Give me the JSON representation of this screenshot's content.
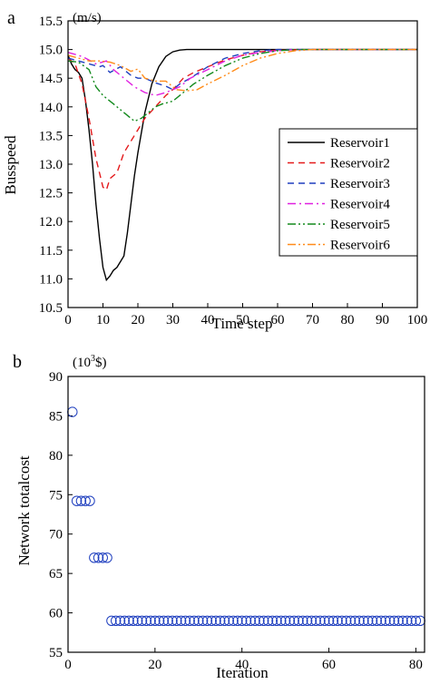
{
  "chart_data": [
    {
      "type": "line",
      "panel_label": "a",
      "unit": "(m/s)",
      "xlabel": "Time step",
      "ylabel": "Busspeed",
      "xlim": [
        0,
        100
      ],
      "ylim": [
        10.5,
        15.5
      ],
      "xticks": [
        0,
        10,
        20,
        30,
        40,
        50,
        60,
        70,
        80,
        90,
        100
      ],
      "yticks": [
        10.5,
        11.0,
        11.5,
        12.0,
        12.5,
        13.0,
        13.5,
        14.0,
        14.5,
        15.0,
        15.5
      ],
      "grid": false,
      "legend_position": "right",
      "series": [
        {
          "name": "Reservoir1",
          "color": "#000000",
          "dash": "solid",
          "x": [
            0,
            1,
            2,
            3,
            4,
            5,
            6,
            7,
            8,
            9,
            10,
            11,
            12,
            13,
            14,
            15,
            16,
            17,
            18,
            19,
            20,
            22,
            24,
            26,
            28,
            30,
            32,
            34,
            36,
            40,
            50,
            60,
            70,
            80,
            90,
            100
          ],
          "y": [
            14.9,
            14.75,
            14.65,
            14.6,
            14.5,
            14.1,
            13.6,
            13.0,
            12.3,
            11.7,
            11.2,
            10.98,
            11.05,
            11.15,
            11.2,
            11.3,
            11.4,
            11.8,
            12.3,
            12.8,
            13.2,
            13.9,
            14.4,
            14.7,
            14.88,
            14.96,
            14.99,
            15.0,
            15.0,
            15.0,
            15.0,
            15.0,
            15.0,
            15.0,
            15.0,
            15.0
          ]
        },
        {
          "name": "Reservoir2",
          "color": "#e41a1c",
          "dash": "7,5",
          "x": [
            0,
            2,
            4,
            6,
            8,
            10,
            11,
            12,
            14,
            16,
            18,
            20,
            22,
            25,
            28,
            30,
            33,
            36,
            40,
            45,
            50,
            55,
            60,
            70,
            80,
            90,
            100
          ],
          "y": [
            14.85,
            14.75,
            14.4,
            13.8,
            13.1,
            12.6,
            12.55,
            12.75,
            12.85,
            13.2,
            13.4,
            13.6,
            13.8,
            14.0,
            14.2,
            14.3,
            14.5,
            14.6,
            14.7,
            14.82,
            14.9,
            14.96,
            14.99,
            15.0,
            15.0,
            15.0,
            15.0
          ]
        },
        {
          "name": "Reservoir3",
          "color": "#1f3fbf",
          "dash": "7,5",
          "x": [
            0,
            3,
            6,
            9,
            10,
            12,
            15,
            18,
            20,
            22,
            25,
            27,
            28,
            30,
            32,
            35,
            40,
            45,
            50,
            55,
            60,
            70,
            80,
            90,
            100
          ],
          "y": [
            14.85,
            14.8,
            14.75,
            14.7,
            14.72,
            14.6,
            14.7,
            14.55,
            14.5,
            14.5,
            14.42,
            14.38,
            14.36,
            14.3,
            14.4,
            14.5,
            14.7,
            14.85,
            14.93,
            14.98,
            15.0,
            15.0,
            15.0,
            15.0,
            15.0
          ]
        },
        {
          "name": "Reservoir4",
          "color": "#e020e0",
          "dash": "9,4,2,4",
          "x": [
            0,
            3,
            5,
            8,
            11,
            13,
            16,
            19,
            22,
            25,
            28,
            30,
            32,
            35,
            40,
            45,
            50,
            55,
            60,
            65,
            70,
            80,
            90,
            100
          ],
          "y": [
            14.95,
            14.9,
            14.85,
            14.75,
            14.8,
            14.65,
            14.5,
            14.35,
            14.25,
            14.2,
            14.25,
            14.3,
            14.35,
            14.5,
            14.65,
            14.8,
            14.9,
            14.95,
            14.98,
            15.0,
            15.0,
            15.0,
            15.0,
            15.0
          ]
        },
        {
          "name": "Reservoir5",
          "color": "#138a1d",
          "dash": "9,3,2,3,2,3",
          "x": [
            0,
            3,
            6,
            8,
            10,
            13,
            16,
            19,
            21,
            23,
            25,
            27,
            30,
            33,
            36,
            40,
            45,
            50,
            55,
            60,
            65,
            70,
            80,
            90,
            100
          ],
          "y": [
            14.8,
            14.78,
            14.65,
            14.35,
            14.2,
            14.05,
            13.9,
            13.75,
            13.8,
            13.9,
            14.0,
            14.05,
            14.1,
            14.25,
            14.4,
            14.55,
            14.72,
            14.85,
            14.93,
            14.98,
            15.0,
            15.0,
            15.0,
            15.0,
            15.0
          ]
        },
        {
          "name": "Reservoir6",
          "color": "#ff8c1a",
          "dash": "9,3,2,3,2,3",
          "x": [
            0,
            3,
            6,
            9,
            12,
            15,
            18,
            20,
            22,
            25,
            28,
            31,
            34,
            37,
            40,
            45,
            50,
            55,
            60,
            65,
            70,
            80,
            90,
            100
          ],
          "y": [
            14.9,
            14.85,
            14.8,
            14.8,
            14.78,
            14.72,
            14.62,
            14.66,
            14.5,
            14.45,
            14.45,
            14.3,
            14.28,
            14.3,
            14.4,
            14.55,
            14.72,
            14.85,
            14.93,
            14.98,
            15.0,
            15.0,
            15.0,
            15.0
          ]
        }
      ]
    },
    {
      "type": "scatter",
      "panel_label": "b",
      "unit_prefix": "(10",
      "unit_exp": "3",
      "unit_suffix": "$)",
      "xlabel": "Iteration",
      "ylabel": "Network totalcost",
      "xlim": [
        0,
        82
      ],
      "ylim": [
        55,
        90
      ],
      "xticks": [
        0,
        20,
        40,
        60,
        80
      ],
      "yticks": [
        55,
        60,
        65,
        70,
        75,
        80,
        85,
        90
      ],
      "grid": false,
      "marker": "open-circle",
      "color": "#1f3fbf",
      "x": [
        1,
        2,
        3,
        4,
        5,
        6,
        7,
        8,
        9,
        10,
        11,
        12,
        13,
        14,
        15,
        16,
        17,
        18,
        19,
        20,
        21,
        22,
        23,
        24,
        25,
        26,
        27,
        28,
        29,
        30,
        31,
        32,
        33,
        34,
        35,
        36,
        37,
        38,
        39,
        40,
        41,
        42,
        43,
        44,
        45,
        46,
        47,
        48,
        49,
        50,
        51,
        52,
        53,
        54,
        55,
        56,
        57,
        58,
        59,
        60,
        61,
        62,
        63,
        64,
        65,
        66,
        67,
        68,
        69,
        70,
        71,
        72,
        73,
        74,
        75,
        76,
        77,
        78,
        79,
        80,
        81
      ],
      "y": [
        85.5,
        74.2,
        74.2,
        74.2,
        74.2,
        67,
        67,
        67,
        67,
        59,
        59,
        59,
        59,
        59,
        59,
        59,
        59,
        59,
        59,
        59,
        59,
        59,
        59,
        59,
        59,
        59,
        59,
        59,
        59,
        59,
        59,
        59,
        59,
        59,
        59,
        59,
        59,
        59,
        59,
        59,
        59,
        59,
        59,
        59,
        59,
        59,
        59,
        59,
        59,
        59,
        59,
        59,
        59,
        59,
        59,
        59,
        59,
        59,
        59,
        59,
        59,
        59,
        59,
        59,
        59,
        59,
        59,
        59,
        59,
        59,
        59,
        59,
        59,
        59,
        59,
        59,
        59,
        59,
        59,
        59,
        59
      ]
    }
  ]
}
